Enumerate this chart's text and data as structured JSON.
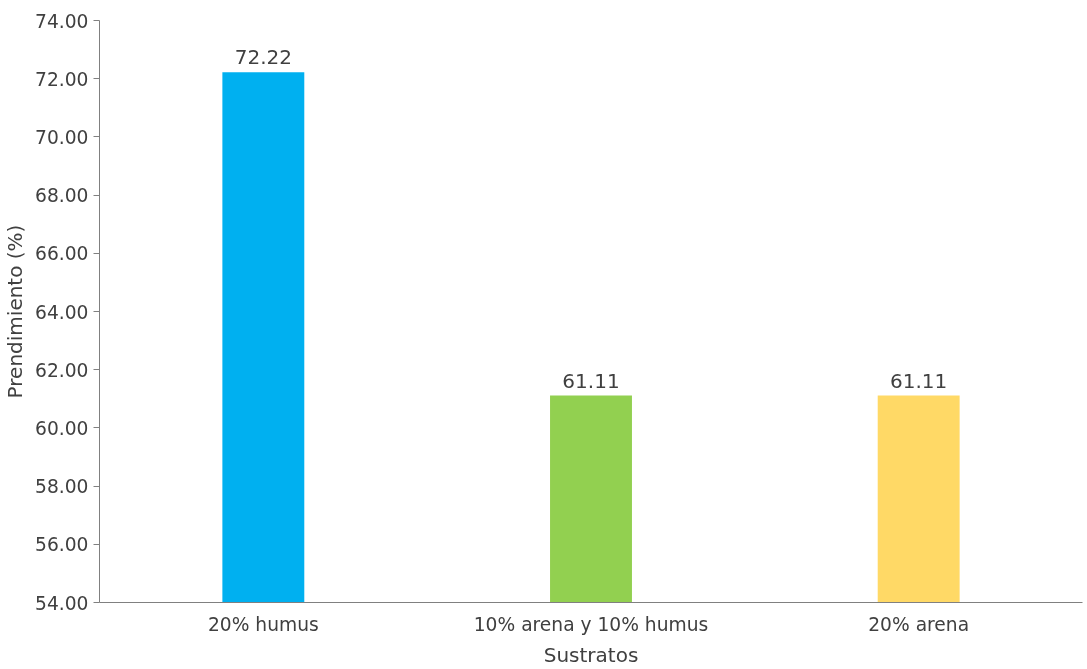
{
  "chart_data": {
    "type": "bar",
    "xlabel": "Sustratos",
    "ylabel": "Prendimiento (%)",
    "categories": [
      "20% humus",
      "10% arena y 10% humus",
      "20% arena"
    ],
    "values": [
      72.22,
      61.11,
      61.11
    ],
    "colors": [
      "#00b0f0",
      "#92d050",
      "#ffd966"
    ],
    "ylim": [
      54,
      74
    ],
    "yticks": [
      {
        "value": 54,
        "label": "54.00"
      },
      {
        "value": 56,
        "label": "56.00"
      },
      {
        "value": 58,
        "label": "58.00"
      },
      {
        "value": 60,
        "label": "60.00"
      },
      {
        "value": 62,
        "label": "62.00"
      },
      {
        "value": 64,
        "label": "64.00"
      },
      {
        "value": 66,
        "label": "66.00"
      },
      {
        "value": 68,
        "label": "68.00"
      },
      {
        "value": 70,
        "label": "70.00"
      },
      {
        "value": 72,
        "label": "72.00"
      },
      {
        "value": 74,
        "label": "74.00"
      }
    ],
    "data_labels": true,
    "grid": false
  }
}
